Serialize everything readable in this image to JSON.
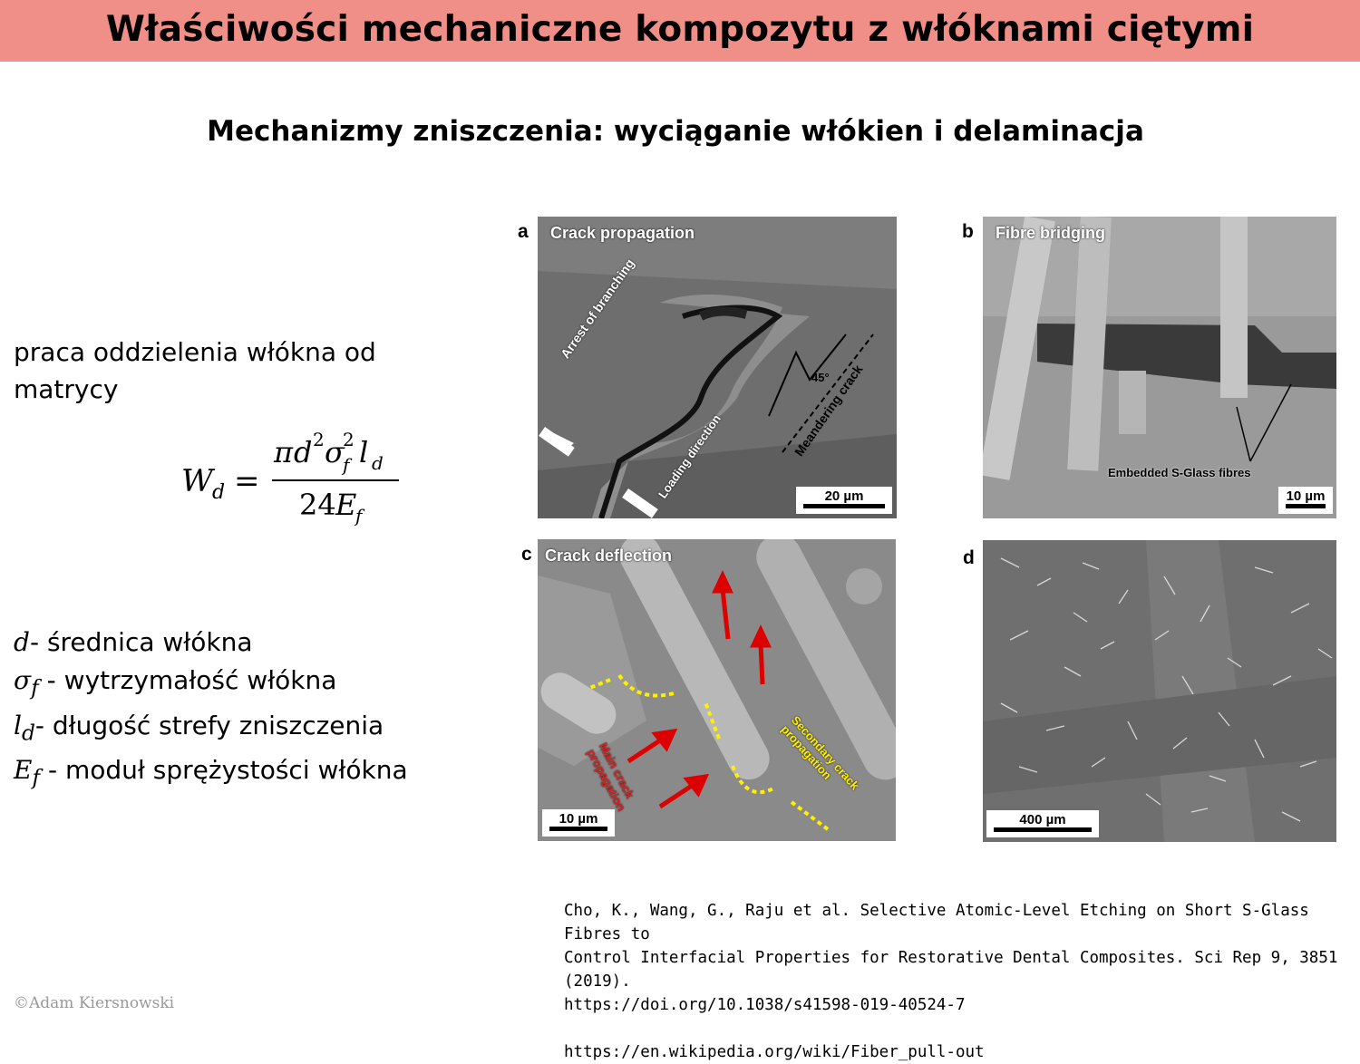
{
  "header": {
    "title": "Właściwości mechaniczne kompozytu z włóknami ciętymi"
  },
  "subtitle": "Mechanizmy zniszczenia: wyciąganie włókien i delaminacja",
  "lead_text": "praca oddzielenia włókna od matrycy",
  "formula": {
    "lhs": "W",
    "lhs_sub": "d",
    "eq": "=",
    "num_pi": "π",
    "num_d": "d",
    "num_d_sup": "2",
    "num_sigma": "σ",
    "num_sigma_sub": "f",
    "num_sigma_sup": "2",
    "num_l": "l",
    "num_l_sub": "d",
    "den_coef": "24",
    "den_E": "E",
    "den_E_sub": "f"
  },
  "definitions": [
    {
      "sym": "d",
      "sub": "",
      "text": "- średnica włókna"
    },
    {
      "sym": "σ",
      "sub": "f",
      "text": " - wytrzymałość włókna"
    },
    {
      "sym": "l",
      "sub": "d",
      "text": "- długość strefy zniszczenia"
    },
    {
      "sym": "E",
      "sub": "f",
      "text": " - moduł sprężystości włókna"
    }
  ],
  "figure": {
    "panels": [
      {
        "letter": "a",
        "caption": "Crack propagation",
        "scale": "20 µm",
        "labels": {
          "arrest": "Arrest of branching",
          "meander": "Meandering crack",
          "angle": "45°",
          "loading": "Loading direction"
        }
      },
      {
        "letter": "b",
        "caption": "Fibre bridging",
        "scale": "10 µm",
        "labels": {
          "embedded": "Embedded S-Glass fibres"
        }
      },
      {
        "letter": "c",
        "caption": "Crack deflection",
        "scale": "10 µm",
        "labels": {
          "main": "Main crack propagation",
          "secondary": "Secondary crack propagation"
        }
      },
      {
        "letter": "d",
        "caption": "",
        "scale": "400 µm",
        "labels": {}
      }
    ]
  },
  "citation": {
    "line1": "Cho, K., Wang, G., Raju et al. Selective Atomic-Level Etching on Short S-Glass Fibres to",
    "line2": "Control Interfacial Properties for Restorative Dental Composites. Sci Rep 9, 3851 (2019).",
    "line3": "https://doi.org/10.1038/s41598-019-40524-7",
    "line4": "https://en.wikipedia.org/wiki/Fiber_pull-out"
  },
  "copyright": "©Adam Kiersnowski"
}
